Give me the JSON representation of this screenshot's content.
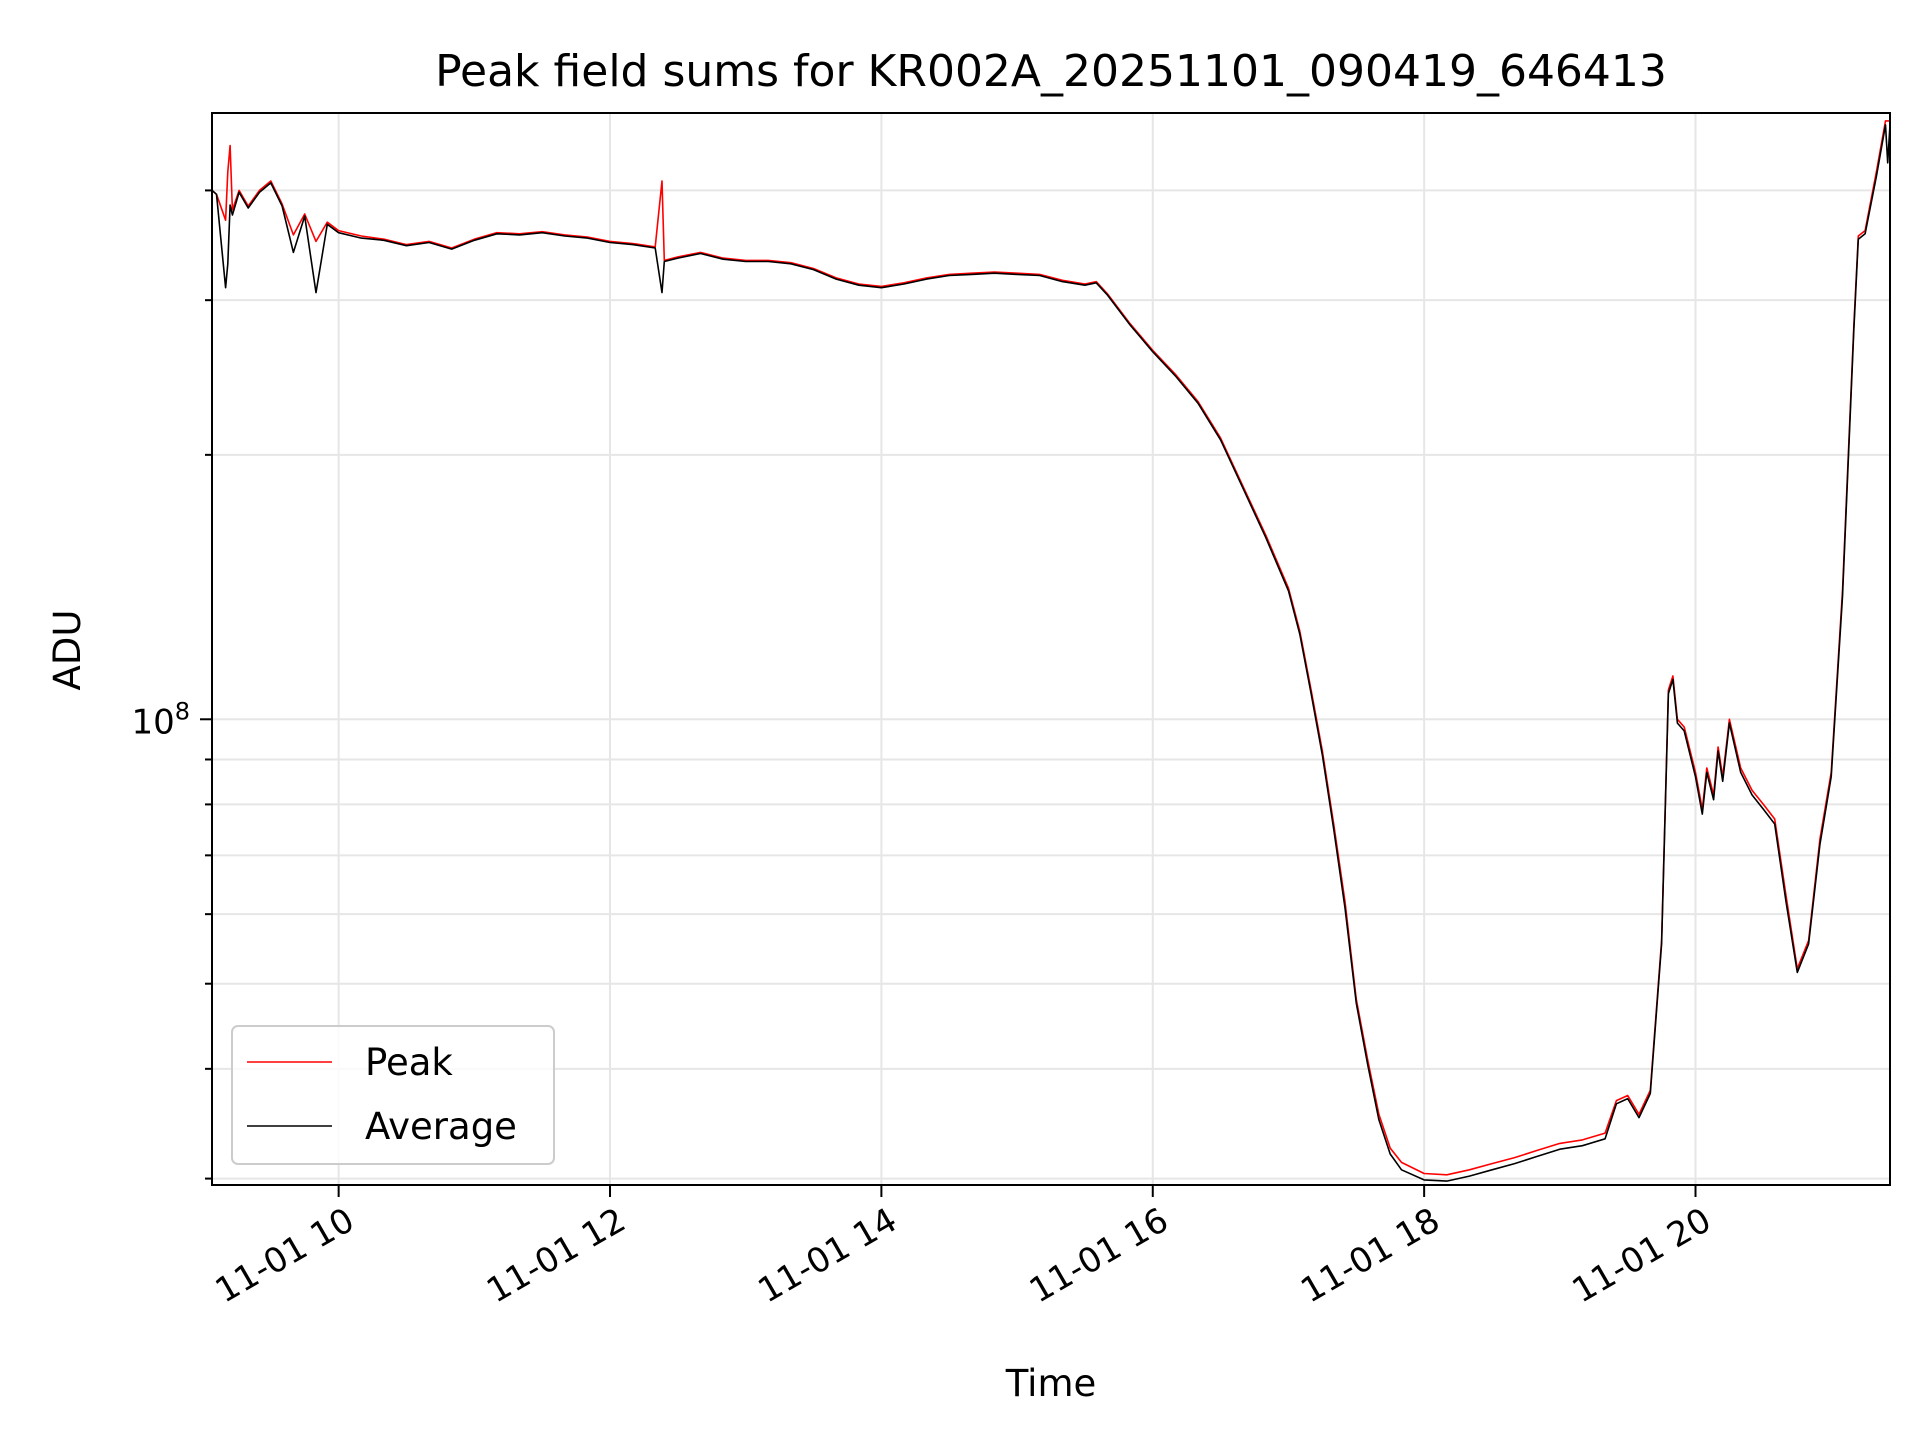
{
  "chart_data": {
    "type": "line",
    "title": "Peak field sums for KR002A_20251101_090419_646413",
    "xlabel": "Time",
    "ylabel": "ADU",
    "y_scale": "log",
    "grid": true,
    "legend_position": "lower-left",
    "x_ticks": [
      "11-01 10",
      "11-01 12",
      "11-01 14",
      "11-01 16",
      "11-01 18",
      "11-01 20"
    ],
    "y_ticks": [
      {
        "label_base": "10",
        "label_exponent": "8",
        "value": 100000000
      }
    ],
    "xlim": [
      "2025-11-01 09:04",
      "2025-11-01 21:26"
    ],
    "ylim": [
      29500000,
      490000000
    ],
    "series": [
      {
        "name": "Peak",
        "color": "#ff0000",
        "points": [
          [
            "2025-11-01 09:04",
            400000000
          ],
          [
            "2025-11-01 09:06",
            396000000
          ],
          [
            "2025-11-01 09:10",
            370000000
          ],
          [
            "2025-11-01 09:11",
            420000000
          ],
          [
            "2025-11-01 09:12",
            450000000
          ],
          [
            "2025-11-01 09:13",
            380000000
          ],
          [
            "2025-11-01 09:16",
            400000000
          ],
          [
            "2025-11-01 09:20",
            384000000
          ],
          [
            "2025-11-01 09:25",
            400000000
          ],
          [
            "2025-11-01 09:30",
            410000000
          ],
          [
            "2025-11-01 09:35",
            386000000
          ],
          [
            "2025-11-01 09:40",
            356000000
          ],
          [
            "2025-11-01 09:45",
            376000000
          ],
          [
            "2025-11-01 09:50",
            350000000
          ],
          [
            "2025-11-01 09:55",
            368000000
          ],
          [
            "2025-11-01 10:00",
            360000000
          ],
          [
            "2025-11-01 10:10",
            355000000
          ],
          [
            "2025-11-01 10:20",
            352000000
          ],
          [
            "2025-11-01 10:30",
            347000000
          ],
          [
            "2025-11-01 10:40",
            350000000
          ],
          [
            "2025-11-01 10:50",
            344000000
          ],
          [
            "2025-11-01 11:00",
            352000000
          ],
          [
            "2025-11-01 11:10",
            358000000
          ],
          [
            "2025-11-01 11:20",
            357000000
          ],
          [
            "2025-11-01 11:30",
            359000000
          ],
          [
            "2025-11-01 11:40",
            356000000
          ],
          [
            "2025-11-01 11:50",
            354000000
          ],
          [
            "2025-11-01 12:00",
            350000000
          ],
          [
            "2025-11-01 12:10",
            348000000
          ],
          [
            "2025-11-01 12:20",
            345000000
          ],
          [
            "2025-11-01 12:23",
            410000000
          ],
          [
            "2025-11-01 12:24",
            333000000
          ],
          [
            "2025-11-01 12:30",
            336000000
          ],
          [
            "2025-11-01 12:40",
            340000000
          ],
          [
            "2025-11-01 12:50",
            335000000
          ],
          [
            "2025-11-01 13:00",
            333000000
          ],
          [
            "2025-11-01 13:10",
            333000000
          ],
          [
            "2025-11-01 13:20",
            331000000
          ],
          [
            "2025-11-01 13:30",
            326000000
          ],
          [
            "2025-11-01 13:40",
            318000000
          ],
          [
            "2025-11-01 13:50",
            313000000
          ],
          [
            "2025-11-01 14:00",
            311000000
          ],
          [
            "2025-11-01 14:10",
            314000000
          ],
          [
            "2025-11-01 14:20",
            318000000
          ],
          [
            "2025-11-01 14:30",
            321000000
          ],
          [
            "2025-11-01 14:40",
            322000000
          ],
          [
            "2025-11-01 14:50",
            323000000
          ],
          [
            "2025-11-01 15:00",
            322000000
          ],
          [
            "2025-11-01 15:10",
            321000000
          ],
          [
            "2025-11-01 15:20",
            316000000
          ],
          [
            "2025-11-01 15:30",
            313000000
          ],
          [
            "2025-11-01 15:35",
            315000000
          ],
          [
            "2025-11-01 15:40",
            305000000
          ],
          [
            "2025-11-01 15:50",
            282000000
          ],
          [
            "2025-11-01 16:00",
            263000000
          ],
          [
            "2025-11-01 16:10",
            247000000
          ],
          [
            "2025-11-01 16:20",
            230000000
          ],
          [
            "2025-11-01 16:30",
            209000000
          ],
          [
            "2025-11-01 16:40",
            184000000
          ],
          [
            "2025-11-01 16:50",
            162000000
          ],
          [
            "2025-11-01 17:00",
            141000000
          ],
          [
            "2025-11-01 17:05",
            126000000
          ],
          [
            "2025-11-01 17:10",
            108000000
          ],
          [
            "2025-11-01 17:15",
            92000000
          ],
          [
            "2025-11-01 17:20",
            76000000
          ],
          [
            "2025-11-01 17:25",
            62000000
          ],
          [
            "2025-11-01 17:30",
            48000000
          ],
          [
            "2025-11-01 17:35",
            41000000
          ],
          [
            "2025-11-01 17:40",
            35500000
          ],
          [
            "2025-11-01 17:45",
            32500000
          ],
          [
            "2025-11-01 17:50",
            31300000
          ],
          [
            "2025-11-01 18:00",
            30400000
          ],
          [
            "2025-11-01 18:10",
            30300000
          ],
          [
            "2025-11-01 18:20",
            30700000
          ],
          [
            "2025-11-01 18:30",
            31200000
          ],
          [
            "2025-11-01 18:40",
            31700000
          ],
          [
            "2025-11-01 18:50",
            32300000
          ],
          [
            "2025-11-01 19:00",
            32900000
          ],
          [
            "2025-11-01 19:10",
            33200000
          ],
          [
            "2025-11-01 19:20",
            33800000
          ],
          [
            "2025-11-01 19:25",
            36800000
          ],
          [
            "2025-11-01 19:30",
            37300000
          ],
          [
            "2025-11-01 19:35",
            35500000
          ],
          [
            "2025-11-01 19:40",
            37800000
          ],
          [
            "2025-11-01 19:45",
            56000000
          ],
          [
            "2025-11-01 19:48",
            108000000
          ],
          [
            "2025-11-01 19:50",
            112000000
          ],
          [
            "2025-11-01 19:52",
            100000000
          ],
          [
            "2025-11-01 19:55",
            98000000
          ],
          [
            "2025-11-01 20:00",
            87000000
          ],
          [
            "2025-11-01 20:03",
            79000000
          ],
          [
            "2025-11-01 20:05",
            88000000
          ],
          [
            "2025-11-01 20:08",
            82000000
          ],
          [
            "2025-11-01 20:10",
            93000000
          ],
          [
            "2025-11-01 20:12",
            86000000
          ],
          [
            "2025-11-01 20:15",
            100000000
          ],
          [
            "2025-11-01 20:20",
            88000000
          ],
          [
            "2025-11-01 20:25",
            83000000
          ],
          [
            "2025-11-01 20:30",
            80000000
          ],
          [
            "2025-11-01 20:35",
            77000000
          ],
          [
            "2025-11-01 20:40",
            63000000
          ],
          [
            "2025-11-01 20:45",
            52000000
          ],
          [
            "2025-11-01 20:50",
            56000000
          ],
          [
            "2025-11-01 20:55",
            73000000
          ],
          [
            "2025-11-01 21:00",
            87000000
          ],
          [
            "2025-11-01 21:05",
            140000000
          ],
          [
            "2025-11-01 21:10",
            280000000
          ],
          [
            "2025-11-01 21:12",
            355000000
          ],
          [
            "2025-11-01 21:15",
            360000000
          ],
          [
            "2025-11-01 21:20",
            420000000
          ],
          [
            "2025-11-01 21:24",
            480000000
          ],
          [
            "2025-11-01 21:26",
            480000000
          ]
        ]
      },
      {
        "name": "Average",
        "color": "#000000",
        "points": [
          [
            "2025-11-01 09:04",
            400000000
          ],
          [
            "2025-11-01 09:06",
            396000000
          ],
          [
            "2025-11-01 09:10",
            310000000
          ],
          [
            "2025-11-01 09:11",
            330000000
          ],
          [
            "2025-11-01 09:12",
            385000000
          ],
          [
            "2025-11-01 09:13",
            375000000
          ],
          [
            "2025-11-01 09:16",
            398000000
          ],
          [
            "2025-11-01 09:20",
            382000000
          ],
          [
            "2025-11-01 09:25",
            398000000
          ],
          [
            "2025-11-01 09:30",
            408000000
          ],
          [
            "2025-11-01 09:35",
            384000000
          ],
          [
            "2025-11-01 09:40",
            340000000
          ],
          [
            "2025-11-01 09:45",
            374000000
          ],
          [
            "2025-11-01 09:50",
            306000000
          ],
          [
            "2025-11-01 09:55",
            366000000
          ],
          [
            "2025-11-01 10:00",
            358000000
          ],
          [
            "2025-11-01 10:10",
            353000000
          ],
          [
            "2025-11-01 10:20",
            351000000
          ],
          [
            "2025-11-01 10:30",
            346000000
          ],
          [
            "2025-11-01 10:40",
            349000000
          ],
          [
            "2025-11-01 10:50",
            343000000
          ],
          [
            "2025-11-01 11:00",
            351000000
          ],
          [
            "2025-11-01 11:10",
            357000000
          ],
          [
            "2025-11-01 11:20",
            356000000
          ],
          [
            "2025-11-01 11:30",
            358000000
          ],
          [
            "2025-11-01 11:40",
            355000000
          ],
          [
            "2025-11-01 11:50",
            353000000
          ],
          [
            "2025-11-01 12:00",
            349000000
          ],
          [
            "2025-11-01 12:10",
            347000000
          ],
          [
            "2025-11-01 12:20",
            344000000
          ],
          [
            "2025-11-01 12:23",
            306000000
          ],
          [
            "2025-11-01 12:24",
            332000000
          ],
          [
            "2025-11-01 12:30",
            335000000
          ],
          [
            "2025-11-01 12:40",
            339000000
          ],
          [
            "2025-11-01 12:50",
            334000000
          ],
          [
            "2025-11-01 13:00",
            332000000
          ],
          [
            "2025-11-01 13:10",
            332000000
          ],
          [
            "2025-11-01 13:20",
            330000000
          ],
          [
            "2025-11-01 13:30",
            325000000
          ],
          [
            "2025-11-01 13:40",
            317000000
          ],
          [
            "2025-11-01 13:50",
            312000000
          ],
          [
            "2025-11-01 14:00",
            310000000
          ],
          [
            "2025-11-01 14:10",
            313000000
          ],
          [
            "2025-11-01 14:20",
            317000000
          ],
          [
            "2025-11-01 14:30",
            320000000
          ],
          [
            "2025-11-01 14:40",
            321000000
          ],
          [
            "2025-11-01 14:50",
            322000000
          ],
          [
            "2025-11-01 15:00",
            321000000
          ],
          [
            "2025-11-01 15:10",
            320000000
          ],
          [
            "2025-11-01 15:20",
            315000000
          ],
          [
            "2025-11-01 15:30",
            312000000
          ],
          [
            "2025-11-01 15:35",
            314000000
          ],
          [
            "2025-11-01 15:40",
            304000000
          ],
          [
            "2025-11-01 15:50",
            281000000
          ],
          [
            "2025-11-01 16:00",
            262000000
          ],
          [
            "2025-11-01 16:10",
            246000000
          ],
          [
            "2025-11-01 16:20",
            229000000
          ],
          [
            "2025-11-01 16:30",
            208000000
          ],
          [
            "2025-11-01 16:40",
            183000000
          ],
          [
            "2025-11-01 16:50",
            161000000
          ],
          [
            "2025-11-01 17:00",
            140000000
          ],
          [
            "2025-11-01 17:05",
            125000000
          ],
          [
            "2025-11-01 17:10",
            107000000
          ],
          [
            "2025-11-01 17:15",
            91000000
          ],
          [
            "2025-11-01 17:20",
            75000000
          ],
          [
            "2025-11-01 17:25",
            61000000
          ],
          [
            "2025-11-01 17:30",
            47500000
          ],
          [
            "2025-11-01 17:35",
            40500000
          ],
          [
            "2025-11-01 17:40",
            35000000
          ],
          [
            "2025-11-01 17:45",
            32000000
          ],
          [
            "2025-11-01 17:50",
            30700000
          ],
          [
            "2025-11-01 18:00",
            29900000
          ],
          [
            "2025-11-01 18:10",
            29800000
          ],
          [
            "2025-11-01 18:20",
            30200000
          ],
          [
            "2025-11-01 18:30",
            30700000
          ],
          [
            "2025-11-01 18:40",
            31200000
          ],
          [
            "2025-11-01 18:50",
            31800000
          ],
          [
            "2025-11-01 19:00",
            32400000
          ],
          [
            "2025-11-01 19:10",
            32700000
          ],
          [
            "2025-11-01 19:20",
            33300000
          ],
          [
            "2025-11-01 19:25",
            36500000
          ],
          [
            "2025-11-01 19:30",
            37000000
          ],
          [
            "2025-11-01 19:35",
            35200000
          ],
          [
            "2025-11-01 19:40",
            37500000
          ],
          [
            "2025-11-01 19:45",
            55500000
          ],
          [
            "2025-11-01 19:48",
            107000000
          ],
          [
            "2025-11-01 19:50",
            111000000
          ],
          [
            "2025-11-01 19:52",
            99000000
          ],
          [
            "2025-11-01 19:55",
            97000000
          ],
          [
            "2025-11-01 20:00",
            86000000
          ],
          [
            "2025-11-01 20:03",
            78000000
          ],
          [
            "2025-11-01 20:05",
            87000000
          ],
          [
            "2025-11-01 20:08",
            81000000
          ],
          [
            "2025-11-01 20:10",
            92000000
          ],
          [
            "2025-11-01 20:12",
            85000000
          ],
          [
            "2025-11-01 20:15",
            99000000
          ],
          [
            "2025-11-01 20:20",
            87000000
          ],
          [
            "2025-11-01 20:25",
            82000000
          ],
          [
            "2025-11-01 20:30",
            79000000
          ],
          [
            "2025-11-01 20:35",
            76000000
          ],
          [
            "2025-11-01 20:40",
            62000000
          ],
          [
            "2025-11-01 20:45",
            51500000
          ],
          [
            "2025-11-01 20:50",
            55500000
          ],
          [
            "2025-11-01 20:55",
            72000000
          ],
          [
            "2025-11-01 21:00",
            86000000
          ],
          [
            "2025-11-01 21:05",
            138000000
          ],
          [
            "2025-11-01 21:10",
            277000000
          ],
          [
            "2025-11-01 21:12",
            352000000
          ],
          [
            "2025-11-01 21:15",
            357000000
          ],
          [
            "2025-11-01 21:20",
            415000000
          ],
          [
            "2025-11-01 21:24",
            475000000
          ],
          [
            "2025-11-01 21:25",
            430000000
          ],
          [
            "2025-11-01 21:26",
            475000000
          ]
        ]
      }
    ]
  }
}
